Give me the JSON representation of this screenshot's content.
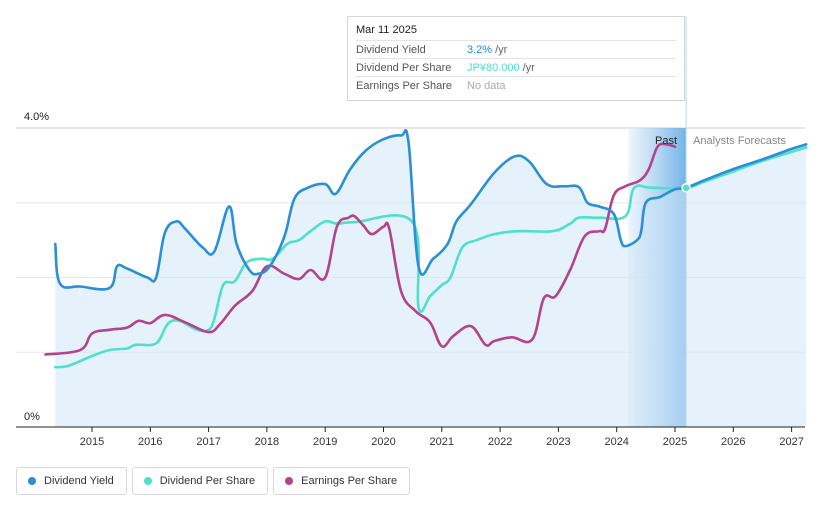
{
  "chart_data": {
    "type": "line",
    "title": "",
    "y_axis": {
      "min_label": "0%",
      "max_label": "4.0%",
      "ylim": [
        0,
        4.0
      ]
    },
    "x_axis": {
      "ticks": [
        "2015",
        "2016",
        "2017",
        "2018",
        "2019",
        "2020",
        "2021",
        "2022",
        "2023",
        "2024",
        "2025",
        "2026",
        "2027"
      ],
      "range": [
        2014.2,
        2027.25
      ]
    },
    "regions": {
      "past_label": "Past",
      "forecast_label": "Analysts Forecasts",
      "past_start": 2024.2,
      "divider": 2025.19
    },
    "series": [
      {
        "name": "Dividend Yield",
        "color": "#2b8fd6",
        "filled": true,
        "points": [
          [
            2014.37,
            2.45
          ],
          [
            2014.45,
            1.92
          ],
          [
            2014.8,
            1.88
          ],
          [
            2015.3,
            1.86
          ],
          [
            2015.43,
            2.15
          ],
          [
            2015.6,
            2.12
          ],
          [
            2015.95,
            2.0
          ],
          [
            2016.1,
            2.0
          ],
          [
            2016.25,
            2.6
          ],
          [
            2016.45,
            2.75
          ],
          [
            2016.6,
            2.65
          ],
          [
            2016.9,
            2.4
          ],
          [
            2017.1,
            2.35
          ],
          [
            2017.35,
            2.95
          ],
          [
            2017.48,
            2.45
          ],
          [
            2017.7,
            2.1
          ],
          [
            2017.85,
            2.05
          ],
          [
            2018.05,
            2.15
          ],
          [
            2018.3,
            2.55
          ],
          [
            2018.47,
            3.05
          ],
          [
            2018.7,
            3.2
          ],
          [
            2019.0,
            3.25
          ],
          [
            2019.18,
            3.12
          ],
          [
            2019.43,
            3.45
          ],
          [
            2019.7,
            3.7
          ],
          [
            2020.0,
            3.85
          ],
          [
            2020.3,
            3.9
          ],
          [
            2020.43,
            3.8
          ],
          [
            2020.6,
            2.15
          ],
          [
            2020.85,
            2.25
          ],
          [
            2021.1,
            2.45
          ],
          [
            2021.25,
            2.75
          ],
          [
            2021.5,
            2.98
          ],
          [
            2021.9,
            3.4
          ],
          [
            2022.25,
            3.62
          ],
          [
            2022.5,
            3.55
          ],
          [
            2022.8,
            3.25
          ],
          [
            2023.1,
            3.22
          ],
          [
            2023.35,
            3.21
          ],
          [
            2023.5,
            3.0
          ],
          [
            2023.7,
            2.95
          ],
          [
            2023.95,
            2.85
          ],
          [
            2024.07,
            2.5
          ],
          [
            2024.15,
            2.42
          ],
          [
            2024.35,
            2.5
          ],
          [
            2024.42,
            2.62
          ],
          [
            2024.5,
            3.0
          ],
          [
            2024.75,
            3.08
          ],
          [
            2025.0,
            3.18
          ],
          [
            2025.19,
            3.2
          ],
          [
            2025.5,
            3.3
          ],
          [
            2026.0,
            3.45
          ],
          [
            2026.5,
            3.58
          ],
          [
            2027.0,
            3.72
          ],
          [
            2027.25,
            3.78
          ]
        ]
      },
      {
        "name": "Dividend Per Share",
        "color": "#4ee0c9",
        "filled": false,
        "points": [
          [
            2014.37,
            0.8
          ],
          [
            2014.6,
            0.82
          ],
          [
            2015.0,
            0.95
          ],
          [
            2015.3,
            1.03
          ],
          [
            2015.6,
            1.05
          ],
          [
            2015.75,
            1.1
          ],
          [
            2016.1,
            1.12
          ],
          [
            2016.3,
            1.38
          ],
          [
            2016.5,
            1.42
          ],
          [
            2016.8,
            1.3
          ],
          [
            2017.0,
            1.3
          ],
          [
            2017.1,
            1.45
          ],
          [
            2017.25,
            1.9
          ],
          [
            2017.45,
            1.95
          ],
          [
            2017.65,
            2.2
          ],
          [
            2017.9,
            2.25
          ],
          [
            2018.1,
            2.25
          ],
          [
            2018.35,
            2.45
          ],
          [
            2018.55,
            2.5
          ],
          [
            2018.75,
            2.62
          ],
          [
            2019.0,
            2.75
          ],
          [
            2019.2,
            2.72
          ],
          [
            2019.5,
            2.74
          ],
          [
            2020.5,
            2.74
          ],
          [
            2020.6,
            1.6
          ],
          [
            2020.8,
            1.75
          ],
          [
            2021.0,
            1.9
          ],
          [
            2021.15,
            2.0
          ],
          [
            2021.35,
            2.4
          ],
          [
            2021.6,
            2.5
          ],
          [
            2021.9,
            2.58
          ],
          [
            2022.3,
            2.62
          ],
          [
            2022.9,
            2.62
          ],
          [
            2023.2,
            2.72
          ],
          [
            2023.35,
            2.8
          ],
          [
            2023.7,
            2.8
          ],
          [
            2024.15,
            2.82
          ],
          [
            2024.3,
            3.2
          ],
          [
            2024.6,
            3.2
          ],
          [
            2025.19,
            3.2
          ],
          [
            2025.5,
            3.28
          ],
          [
            2026.0,
            3.42
          ],
          [
            2026.5,
            3.56
          ],
          [
            2027.0,
            3.68
          ],
          [
            2027.25,
            3.74
          ]
        ]
      },
      {
        "name": "Earnings Per Share",
        "color": "#b5428d",
        "filled": false,
        "points": [
          [
            2014.2,
            0.97
          ],
          [
            2014.8,
            1.03
          ],
          [
            2015.0,
            1.25
          ],
          [
            2015.3,
            1.3
          ],
          [
            2015.6,
            1.33
          ],
          [
            2015.8,
            1.42
          ],
          [
            2016.0,
            1.39
          ],
          [
            2016.25,
            1.5
          ],
          [
            2016.6,
            1.4
          ],
          [
            2017.0,
            1.27
          ],
          [
            2017.2,
            1.38
          ],
          [
            2017.45,
            1.62
          ],
          [
            2017.75,
            1.82
          ],
          [
            2018.0,
            2.15
          ],
          [
            2018.3,
            2.05
          ],
          [
            2018.55,
            1.98
          ],
          [
            2018.75,
            2.1
          ],
          [
            2019.0,
            2.0
          ],
          [
            2019.2,
            2.68
          ],
          [
            2019.4,
            2.8
          ],
          [
            2019.5,
            2.82
          ],
          [
            2019.65,
            2.7
          ],
          [
            2019.8,
            2.58
          ],
          [
            2020.0,
            2.68
          ],
          [
            2020.1,
            2.65
          ],
          [
            2020.3,
            1.82
          ],
          [
            2020.55,
            1.55
          ],
          [
            2020.8,
            1.4
          ],
          [
            2021.0,
            1.08
          ],
          [
            2021.2,
            1.22
          ],
          [
            2021.5,
            1.35
          ],
          [
            2021.75,
            1.1
          ],
          [
            2021.9,
            1.15
          ],
          [
            2022.2,
            1.2
          ],
          [
            2022.55,
            1.17
          ],
          [
            2022.75,
            1.72
          ],
          [
            2022.95,
            1.75
          ],
          [
            2023.2,
            2.1
          ],
          [
            2023.45,
            2.55
          ],
          [
            2023.7,
            2.62
          ],
          [
            2023.8,
            2.65
          ],
          [
            2023.95,
            3.1
          ],
          [
            2024.15,
            3.22
          ],
          [
            2024.4,
            3.3
          ],
          [
            2024.55,
            3.45
          ],
          [
            2024.7,
            3.75
          ],
          [
            2024.85,
            3.78
          ],
          [
            2025.0,
            3.75
          ]
        ]
      }
    ]
  },
  "tooltip": {
    "date": "Mar 11 2025",
    "rows": [
      {
        "label": "Dividend Yield",
        "value": "3.2%",
        "unit": "/yr"
      },
      {
        "label": "Dividend Per Share",
        "value": "JP¥80.000",
        "unit": "/yr"
      },
      {
        "label": "Earnings Per Share",
        "value": "No data",
        "unit": ""
      }
    ]
  },
  "legend": [
    {
      "label": "Dividend Yield",
      "color": "#2b8fd6"
    },
    {
      "label": "Dividend Per Share",
      "color": "#4ee0c9"
    },
    {
      "label": "Earnings Per Share",
      "color": "#b5428d"
    }
  ]
}
